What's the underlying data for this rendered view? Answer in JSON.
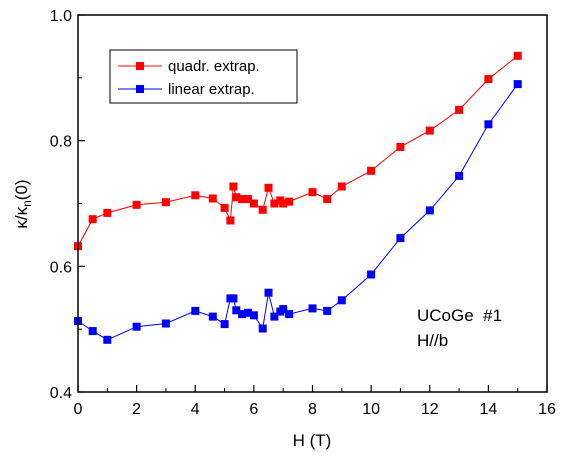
{
  "chart_data": {
    "type": "line",
    "xlabel": "H (T)",
    "ylabel_parts": {
      "base": "κ/κ",
      "sub": "n",
      "tail": "(0)"
    },
    "xlim": [
      0,
      16
    ],
    "ylim": [
      0.4,
      1.0
    ],
    "x_ticks": [
      0,
      2,
      4,
      6,
      8,
      10,
      12,
      14,
      16
    ],
    "y_ticks": [
      0.4,
      0.6,
      0.8,
      1.0
    ],
    "x_tick_labels": [
      "0",
      "2",
      "4",
      "6",
      "8",
      "10",
      "12",
      "14",
      "16"
    ],
    "y_tick_labels": [
      "0.4",
      "0.6",
      "0.8",
      "1.0"
    ],
    "grid": false,
    "legend_position": "top-left",
    "series": [
      {
        "name": "quadr. extrap.",
        "color": "#ff0000",
        "marker": "square",
        "x": [
          0,
          0.5,
          1,
          2,
          3,
          4,
          4.6,
          5,
          5.2,
          5.3,
          5.4,
          5.6,
          5.8,
          6,
          6.3,
          6.5,
          6.7,
          6.9,
          7,
          7.2,
          8,
          8.5,
          9,
          10,
          11,
          12,
          13,
          14,
          15
        ],
        "y": [
          0.632,
          0.675,
          0.685,
          0.698,
          0.702,
          0.713,
          0.708,
          0.693,
          0.673,
          0.727,
          0.71,
          0.707,
          0.707,
          0.7,
          0.69,
          0.725,
          0.7,
          0.705,
          0.7,
          0.703,
          0.718,
          0.707,
          0.727,
          0.752,
          0.79,
          0.816,
          0.849,
          0.898,
          0.935
        ]
      },
      {
        "name": "linear extrap.",
        "color": "#0000ff",
        "marker": "square",
        "x": [
          0,
          0.5,
          1,
          2,
          3,
          4,
          4.6,
          5,
          5.2,
          5.3,
          5.4,
          5.6,
          5.8,
          6,
          6.3,
          6.5,
          6.7,
          6.9,
          7,
          7.2,
          8,
          8.5,
          9,
          10,
          11,
          12,
          13,
          14,
          15
        ],
        "y": [
          0.513,
          0.497,
          0.483,
          0.504,
          0.509,
          0.529,
          0.52,
          0.508,
          0.549,
          0.549,
          0.53,
          0.524,
          0.526,
          0.522,
          0.501,
          0.558,
          0.52,
          0.528,
          0.532,
          0.524,
          0.533,
          0.529,
          0.546,
          0.587,
          0.645,
          0.689,
          0.744,
          0.826,
          0.89
        ]
      }
    ],
    "annotations": [
      "UCoGe  #1",
      "H//b"
    ]
  }
}
